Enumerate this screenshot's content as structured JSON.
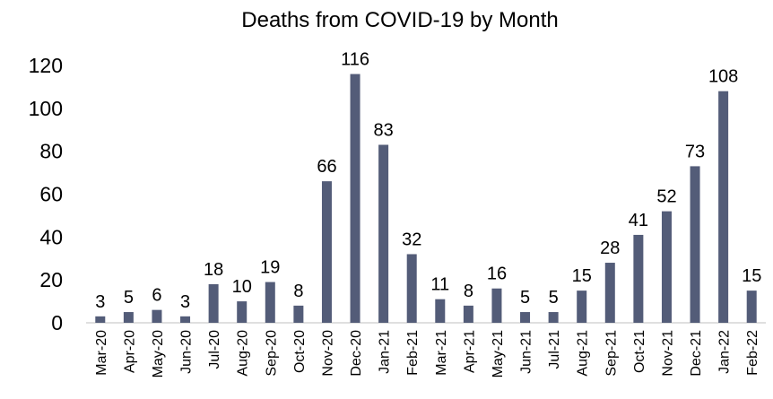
{
  "chart_data": {
    "type": "bar",
    "title": "Deaths from COVID-19 by Month",
    "categories": [
      "Mar-20",
      "Apr-20",
      "May-20",
      "Jun-20",
      "Jul-20",
      "Aug-20",
      "Sep-20",
      "Oct-20",
      "Nov-20",
      "Dec-20",
      "Jan-21",
      "Feb-21",
      "Mar-21",
      "Apr-21",
      "May-21",
      "Jun-21",
      "Jul-21",
      "Aug-21",
      "Sep-21",
      "Oct-21",
      "Nov-21",
      "Dec-21",
      "Jan-22",
      "Feb-22"
    ],
    "values": [
      3,
      5,
      6,
      3,
      18,
      10,
      19,
      8,
      66,
      116,
      83,
      32,
      11,
      8,
      16,
      5,
      5,
      15,
      28,
      41,
      52,
      73,
      108,
      15
    ],
    "color": "#535c78",
    "ylim": [
      0,
      120
    ],
    "yticks": [
      0,
      20,
      40,
      60,
      80,
      100,
      120
    ],
    "grid": false,
    "data_labels": true
  }
}
